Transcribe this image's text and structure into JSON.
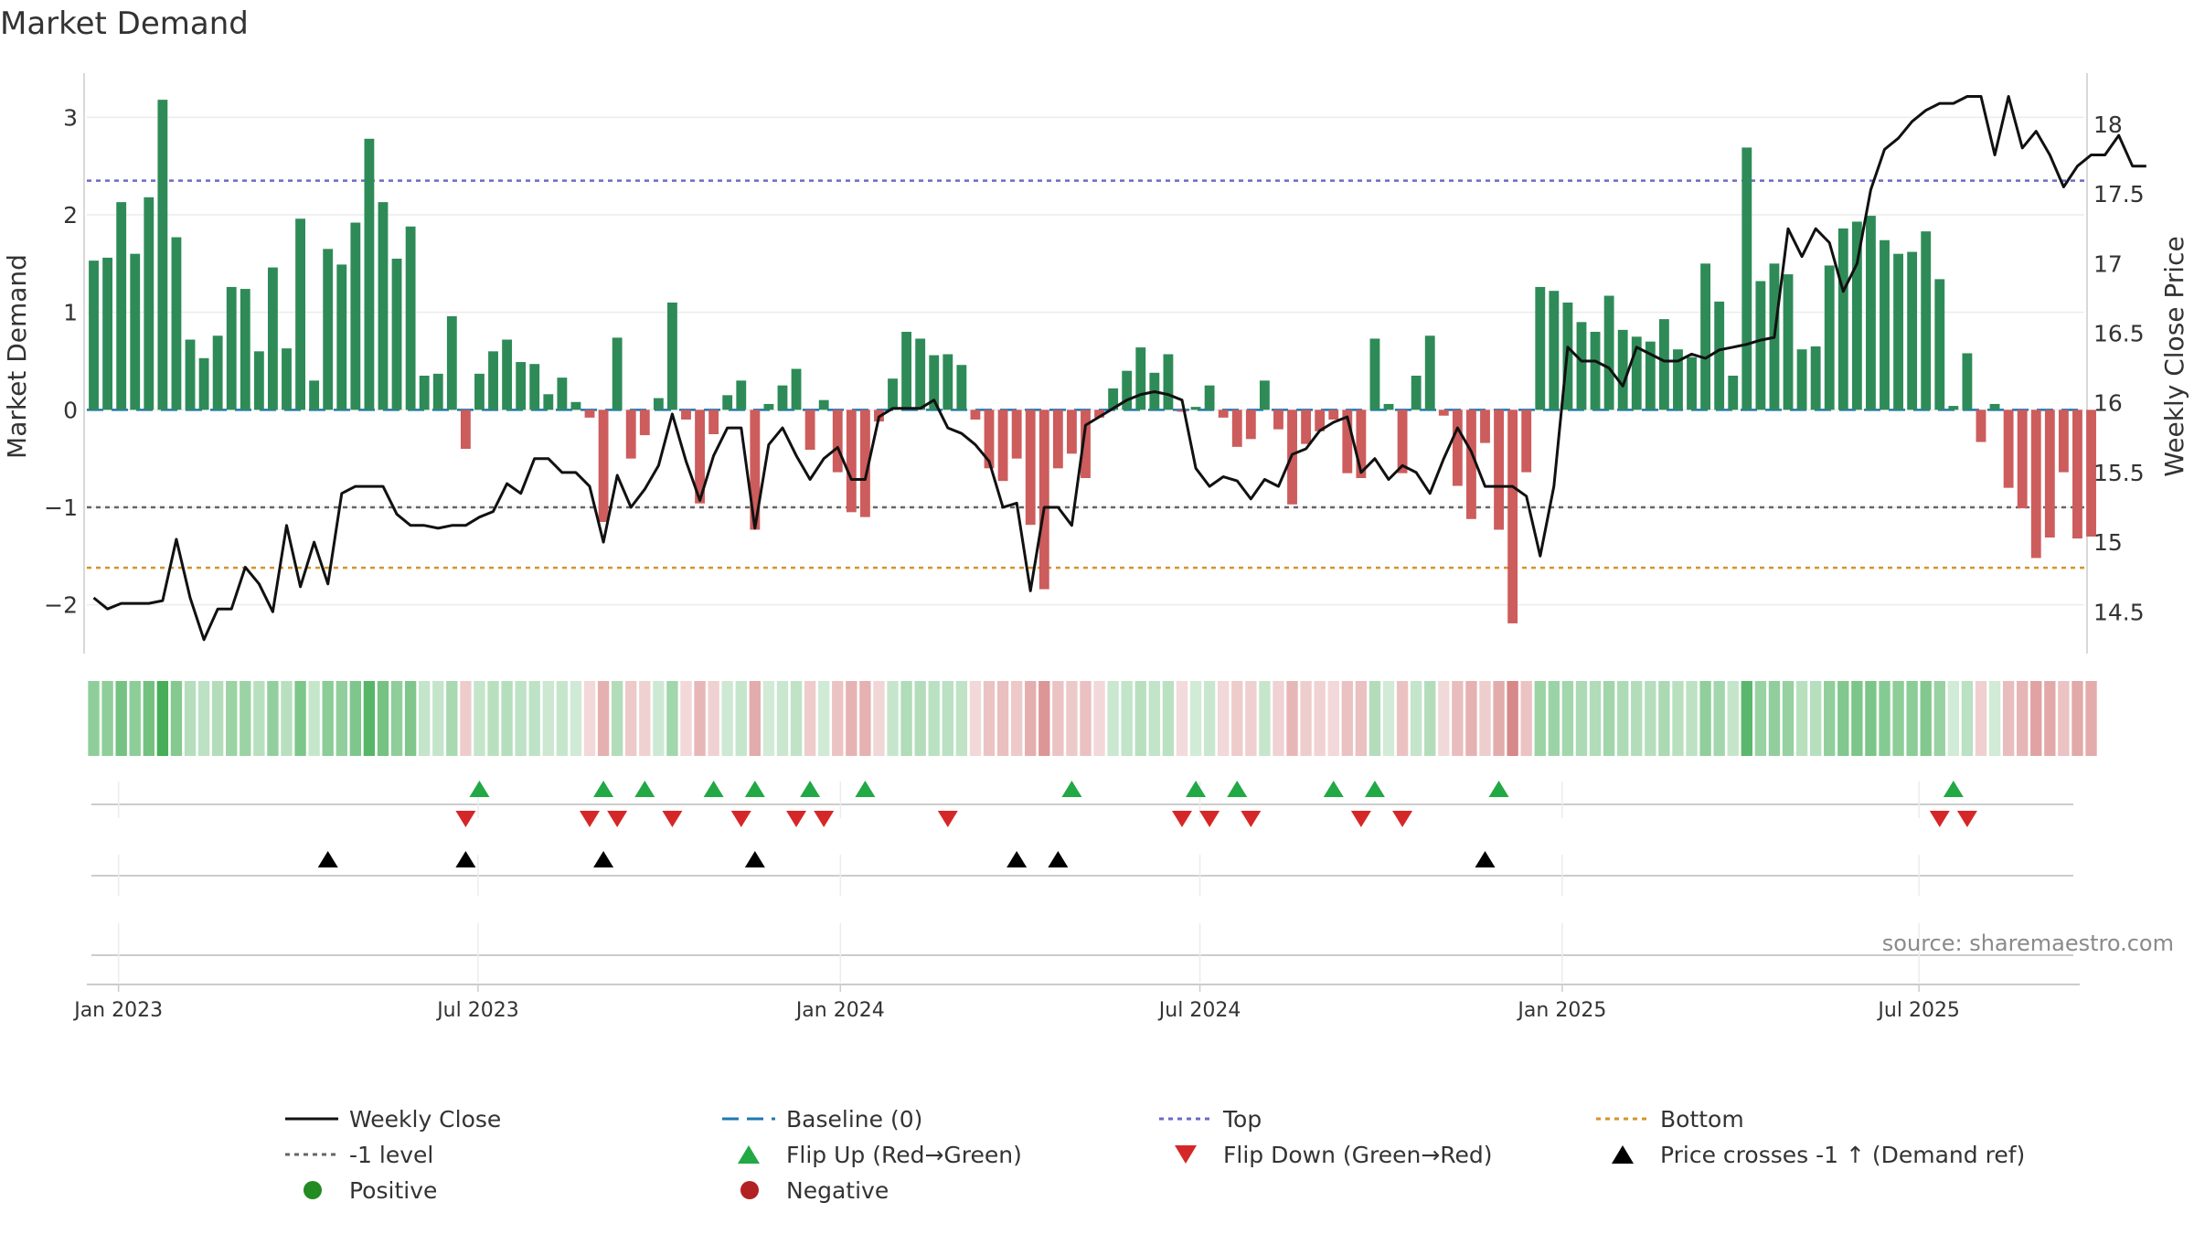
{
  "chart_data": {
    "type": "bar",
    "title": "Market Demand",
    "ylabel": "Market Demand",
    "y2label": "Weekly Close Price",
    "ylim": [
      -2.5,
      3.5
    ],
    "y2lim": [
      14.2,
      18.4
    ],
    "yticks": [
      3,
      2,
      1,
      0,
      -1,
      -2
    ],
    "yticklabels": [
      "3",
      "2",
      "1",
      "0",
      "−1",
      "−2"
    ],
    "y2ticks": [
      18,
      17.5,
      17,
      16.5,
      16,
      15.5,
      15,
      14.5
    ],
    "y2ticklabels": [
      "18",
      "17.5",
      "17",
      "16.5",
      "16",
      "15.5",
      "15",
      "14.5"
    ],
    "x_start": "2022-12-26",
    "weeks": 145,
    "x_ticks": [
      {
        "label": "Jan 2023",
        "week": 2.3
      },
      {
        "label": "Jul 2023",
        "week": 28.4
      },
      {
        "label": "Jan 2024",
        "week": 54.7
      },
      {
        "label": "Jul 2024",
        "week": 80.8
      },
      {
        "label": "Jan 2025",
        "week": 107.1
      },
      {
        "label": "Jul 2025",
        "week": 133.0
      }
    ],
    "reference_lines": {
      "baseline": 0,
      "top": 2.35,
      "minus1": -1,
      "bottom": -1.62
    },
    "demand": [
      1.53,
      1.56,
      2.13,
      1.6,
      2.18,
      3.18,
      1.77,
      0.72,
      0.53,
      0.76,
      1.26,
      1.24,
      0.6,
      1.46,
      0.63,
      1.96,
      0.3,
      1.65,
      1.49,
      1.92,
      2.78,
      2.13,
      1.55,
      1.88,
      0.35,
      0.37,
      0.96,
      -0.4,
      0.37,
      0.6,
      0.72,
      0.49,
      0.47,
      0.16,
      0.33,
      0.08,
      -0.08,
      -1.15,
      0.74,
      -0.5,
      -0.26,
      0.12,
      1.1,
      -0.1,
      -0.96,
      -0.25,
      0.15,
      0.3,
      -1.23,
      0.06,
      0.25,
      0.42,
      -0.41,
      0.1,
      -0.64,
      -1.05,
      -1.1,
      -0.12,
      0.32,
      0.8,
      0.73,
      0.56,
      0.57,
      0.46,
      -0.1,
      -0.6,
      -0.73,
      -0.5,
      -1.18,
      -1.84,
      -0.6,
      -0.45,
      -0.7,
      -0.08,
      0.22,
      0.4,
      0.64,
      0.38,
      0.57,
      -0.02,
      0.03,
      0.25,
      -0.08,
      -0.38,
      -0.3,
      0.3,
      -0.2,
      -0.97,
      -0.35,
      -0.22,
      -0.1,
      -0.65,
      -0.7,
      0.73,
      0.06,
      -0.65,
      0.35,
      0.76,
      -0.06,
      -0.78,
      -1.12,
      -0.34,
      -1.23,
      -2.19,
      -0.64,
      1.26,
      1.22,
      1.1,
      0.9,
      0.8,
      1.17,
      0.82,
      0.75,
      0.7,
      0.93,
      0.62,
      0.54,
      1.5,
      1.11,
      0.35,
      2.69,
      1.32,
      1.5,
      1.39,
      0.62,
      0.65,
      1.48,
      1.86,
      1.93,
      1.99,
      1.74,
      1.6,
      1.62,
      1.83,
      1.34,
      0.04,
      0.58,
      -0.33,
      0.06,
      -0.8,
      -1.01,
      -1.52,
      -1.31,
      -0.64,
      -1.32,
      -1.3
    ],
    "weekly_close": [
      14.6,
      14.52,
      14.56,
      14.56,
      14.56,
      14.58,
      15.02,
      14.6,
      14.3,
      14.52,
      14.52,
      14.82,
      14.7,
      14.5,
      15.12,
      14.68,
      15,
      14.7,
      15.35,
      15.4,
      15.4,
      15.4,
      15.2,
      15.12,
      15.12,
      15.1,
      15.12,
      15.12,
      15.18,
      15.22,
      15.42,
      15.35,
      15.6,
      15.6,
      15.5,
      15.5,
      15.4,
      15.0,
      15.48,
      15.25,
      15.38,
      15.55,
      15.92,
      15.58,
      15.3,
      15.62,
      15.82,
      15.82,
      15.1,
      15.7,
      15.82,
      15.62,
      15.45,
      15.6,
      15.68,
      15.45,
      15.45,
      15.9,
      15.96,
      15.96,
      15.96,
      16.02,
      15.82,
      15.78,
      15.7,
      15.58,
      15.25,
      15.28,
      14.65,
      15.25,
      15.25,
      15.12,
      15.84,
      15.9,
      15.96,
      16.02,
      16.06,
      16.08,
      16.06,
      16.02,
      15.53,
      15.4,
      15.47,
      15.44,
      15.31,
      15.45,
      15.4,
      15.63,
      15.67,
      15.8,
      15.86,
      15.9,
      15.5,
      15.6,
      15.45,
      15.55,
      15.5,
      15.35,
      15.6,
      15.82,
      15.65,
      15.4,
      15.4,
      15.4,
      15.33,
      14.9,
      15.4,
      16.4,
      16.3,
      16.3,
      16.25,
      16.12,
      16.4,
      16.35,
      16.3,
      16.3,
      16.35,
      16.32,
      16.38,
      16.4,
      16.42,
      16.45,
      16.47,
      17.25,
      17.05,
      17.25,
      17.15,
      16.8,
      17.0,
      17.53,
      17.82,
      17.9,
      18.02,
      18.1,
      18.15,
      18.15,
      18.2,
      18.2,
      17.78,
      18.2,
      17.83,
      17.95,
      17.78,
      17.55,
      17.7,
      17.78,
      17.78,
      17.92,
      17.7,
      17.7
    ],
    "flip_up_weeks": [
      28,
      37,
      40,
      45,
      48,
      52,
      56,
      71,
      80,
      83,
      90,
      93,
      102,
      135
    ],
    "flip_down_weeks": [
      27,
      36,
      38,
      42,
      47,
      51,
      53,
      62,
      79,
      81,
      84,
      92,
      95,
      134,
      136
    ],
    "price_cross_weeks": [
      17,
      27,
      37,
      48,
      67,
      70,
      101
    ],
    "legend": {
      "weekly_close": "Weekly Close",
      "baseline": "Baseline (0)",
      "top": "Top",
      "bottom": "Bottom",
      "minus1": "-1 level",
      "flip_up": "Flip Up (Red→Green)",
      "flip_down": "Flip Down (Green→Red)",
      "price_cross": "Price crosses -1 ↑ (Demand ref)",
      "positive": "Positive",
      "negative": "Negative"
    },
    "source": "source: sharemaestro.com",
    "colors": {
      "positive": "#2e8b57",
      "negative": "#cd5c5c",
      "close_line": "#111111",
      "baseline": "#1f77b4",
      "top": "#6a6ac8",
      "minus1": "#666666",
      "bottom": "#d4942a",
      "flip_up": "#22a845",
      "flip_down": "#d62728",
      "price_cross": "#000000",
      "legend_positive": "#228b22",
      "legend_negative": "#b22222",
      "strip_green": "#3aa84e",
      "strip_red": "#c85a5a",
      "axis": "#cccccc",
      "grid": "#ececec",
      "text": "#333333",
      "source": "#8a8a8a"
    }
  }
}
